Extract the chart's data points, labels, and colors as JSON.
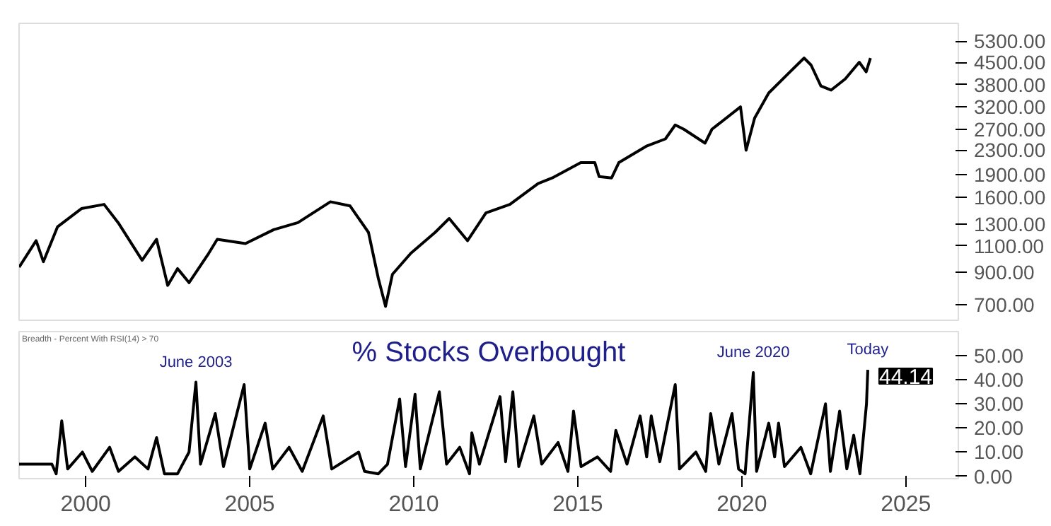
{
  "chart_data": [
    {
      "type": "line",
      "log": "y",
      "tick_labels": "y",
      "xlim": [
        1997.97,
        2026.6
      ],
      "ylim": [
        622,
        6080
      ],
      "yticks": [
        {
          "value": 700,
          "label": "700.00"
        },
        {
          "value": 900,
          "label": "900.00"
        },
        {
          "value": 1100,
          "label": "1100.00"
        },
        {
          "value": 1300,
          "label": "1300.00"
        },
        {
          "value": 1600,
          "label": "1600.00"
        },
        {
          "value": 1900,
          "label": "1900.00"
        },
        {
          "value": 2300,
          "label": "2300.00"
        },
        {
          "value": 2700,
          "label": "2700.00"
        },
        {
          "value": 3200,
          "label": "3200.00"
        },
        {
          "value": 3800,
          "label": "3800.00"
        },
        {
          "value": 4500,
          "label": "4500.00"
        },
        {
          "value": 5300,
          "label": "5300.00"
        }
      ],
      "series": [
        {
          "color": "#000000",
          "x": [
            1997.97,
            1998.49,
            1998.71,
            1999.14,
            1999.87,
            2000.56,
            2000.99,
            2001.72,
            2002.16,
            2002.5,
            2002.8,
            2003.15,
            2003.75,
            2004.01,
            2004.87,
            2005.73,
            2006.47,
            2007.46,
            2008.06,
            2008.62,
            2008.92,
            2009.14,
            2009.35,
            2009.91,
            2010.65,
            2011.08,
            2011.64,
            2012.2,
            2012.93,
            2013.79,
            2014.22,
            2015.09,
            2015.52,
            2015.65,
            2016.03,
            2016.25,
            2017.11,
            2017.67,
            2017.97,
            2018.23,
            2018.88,
            2019.09,
            2019.96,
            2020.13,
            2020.39,
            2020.82,
            2021.42,
            2021.9,
            2022.11,
            2022.41,
            2022.72,
            2023.15,
            2023.58,
            2023.79,
            2023.92
          ],
          "values": [
            935,
            1146,
            975,
            1274,
            1466,
            1514,
            1316,
            986,
            1158,
            813,
            925,
            830,
            1040,
            1158,
            1121,
            1247,
            1316,
            1545,
            1496,
            1221,
            858,
            692,
            885,
            1040,
            1221,
            1359,
            1146,
            1419,
            1514,
            1777,
            1855,
            2086,
            2086,
            1874,
            1855,
            2086,
            2373,
            2503,
            2786,
            2697,
            2423,
            2697,
            3201,
            2296,
            2939,
            3562,
            4139,
            4659,
            4414,
            3760,
            3641,
            3966,
            4510,
            4188,
            4659
          ]
        }
      ]
    },
    {
      "type": "line",
      "title": "% Stocks Overbought",
      "subtitle": "Breadth - Percent With RSI(14) > 70",
      "xlim": [
        1997.97,
        2026.6
      ],
      "ylim": [
        -1,
        60
      ],
      "xticks": [
        2000,
        2005,
        2010,
        2015,
        2020,
        2025
      ],
      "yticks": [
        {
          "value": 0,
          "label": "0.00"
        },
        {
          "value": 10,
          "label": "10.00"
        },
        {
          "value": 20,
          "label": "20.00"
        },
        {
          "value": 30,
          "label": "30.00"
        },
        {
          "value": 40,
          "label": "40.00"
        },
        {
          "value": 50,
          "label": "50.00"
        }
      ],
      "annotations": [
        {
          "text": "June 2003",
          "x": 2003.36,
          "y": 39
        },
        {
          "text": "June 2020",
          "x": 2020.35,
          "y": 43
        },
        {
          "text": "Today",
          "x": 2023.84,
          "y": 44.14
        }
      ],
      "series": [
        {
          "color": "#000000",
          "x": [
            1997.97,
            1998.97,
            1999.1,
            1999.27,
            1999.45,
            1999.9,
            2000.2,
            2000.73,
            2001.0,
            2001.5,
            2001.9,
            2002.16,
            2002.4,
            2002.8,
            2003.15,
            2003.36,
            2003.5,
            2003.95,
            2004.2,
            2004.83,
            2005.0,
            2005.47,
            2005.7,
            2006.2,
            2006.6,
            2007.24,
            2007.5,
            2008.32,
            2008.5,
            2008.92,
            2009.2,
            2009.57,
            2009.75,
            2010.04,
            2010.2,
            2010.78,
            2011.0,
            2011.4,
            2011.7,
            2011.77,
            2012.0,
            2012.63,
            2012.8,
            2013.02,
            2013.2,
            2013.66,
            2013.9,
            2014.4,
            2014.7,
            2014.87,
            2015.1,
            2015.6,
            2016.0,
            2016.16,
            2016.5,
            2016.9,
            2017.1,
            2017.24,
            2017.5,
            2017.97,
            2018.1,
            2018.6,
            2018.9,
            2019.05,
            2019.3,
            2019.7,
            2019.9,
            2020.1,
            2020.35,
            2020.45,
            2020.82,
            2021.0,
            2021.12,
            2021.3,
            2021.8,
            2022.1,
            2022.55,
            2022.7,
            2022.98,
            2023.2,
            2023.41,
            2023.6,
            2023.8,
            2023.84
          ],
          "values": [
            5,
            5,
            1,
            23,
            3,
            10,
            2,
            12,
            2,
            8,
            3,
            16,
            1,
            1,
            10,
            39,
            5,
            26,
            4,
            38,
            3,
            22,
            3,
            12,
            2,
            25,
            3,
            10,
            2,
            1,
            5,
            32,
            4,
            34,
            3,
            35,
            5,
            12,
            1,
            18,
            5,
            33,
            6,
            35,
            4,
            25,
            5,
            14,
            2,
            27,
            4,
            8,
            2,
            19,
            5,
            25,
            8,
            25,
            6,
            38,
            3,
            10,
            2,
            26,
            5,
            26,
            3,
            1,
            43,
            2,
            22,
            8,
            22,
            4,
            12,
            1,
            30,
            2,
            27,
            3,
            17,
            1,
            30,
            44.14
          ],
          "value_labels": [
            null,
            null,
            null,
            null,
            null,
            null,
            null,
            null,
            null,
            null,
            null,
            null,
            null,
            null,
            null,
            null,
            null,
            null,
            null,
            null,
            null,
            null,
            null,
            null,
            null,
            null,
            null,
            null,
            null,
            null,
            null,
            null,
            null,
            null,
            null,
            null,
            null,
            null,
            null,
            null,
            null,
            null,
            null,
            null,
            null,
            null,
            null,
            null,
            null,
            null,
            null,
            null,
            null,
            null,
            null,
            null,
            null,
            null,
            null,
            null,
            null,
            null,
            null,
            null,
            null,
            null,
            null,
            null,
            null,
            null,
            null,
            null,
            null,
            null,
            null,
            null,
            null,
            null,
            null,
            null,
            null,
            null,
            null,
            "44.14"
          ]
        }
      ]
    }
  ]
}
